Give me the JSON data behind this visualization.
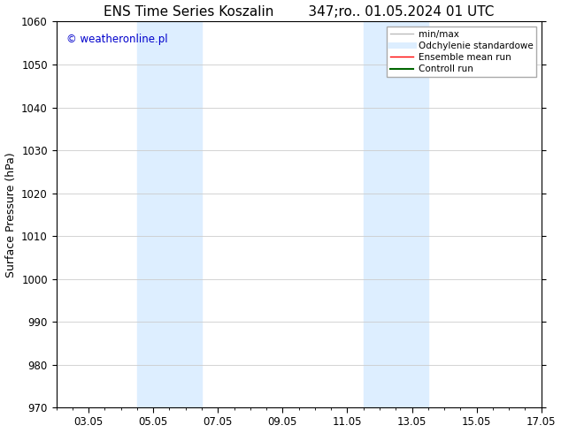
{
  "title": "ENS Time Series Koszalin        347;ro.. 01.05.2024 01 UTC",
  "ylabel": "Surface Pressure (hPa)",
  "ylim": [
    970,
    1060
  ],
  "yticks": [
    970,
    980,
    990,
    1000,
    1010,
    1020,
    1030,
    1040,
    1050,
    1060
  ],
  "x_min": 1,
  "x_max": 16,
  "xtick_labels": [
    "03.05",
    "05.05",
    "07.05",
    "09.05",
    "11.05",
    "13.05",
    "15.05",
    "17.05"
  ],
  "xtick_positions": [
    2,
    4,
    6,
    8,
    10,
    12,
    14,
    16
  ],
  "shaded_regions": [
    {
      "x_start": 3.5,
      "x_end": 5.5,
      "color": "#ddeeff"
    },
    {
      "x_start": 10.5,
      "x_end": 12.5,
      "color": "#ddeeff"
    }
  ],
  "watermark": "© weatheronline.pl",
  "watermark_color": "#0000cc",
  "legend_entries": [
    {
      "label": "min/max",
      "color": "#bbbbbb",
      "lw": 1.0
    },
    {
      "label": "Odchylenie standardowe",
      "color": "#ddeeff",
      "lw": 5
    },
    {
      "label": "Ensemble mean run",
      "color": "#ff0000",
      "lw": 1.0
    },
    {
      "label": "Controll run",
      "color": "#006600",
      "lw": 1.5
    }
  ],
  "background_color": "#ffffff",
  "grid_color": "#cccccc",
  "title_fontsize": 11,
  "axis_fontsize": 9,
  "tick_fontsize": 8.5
}
